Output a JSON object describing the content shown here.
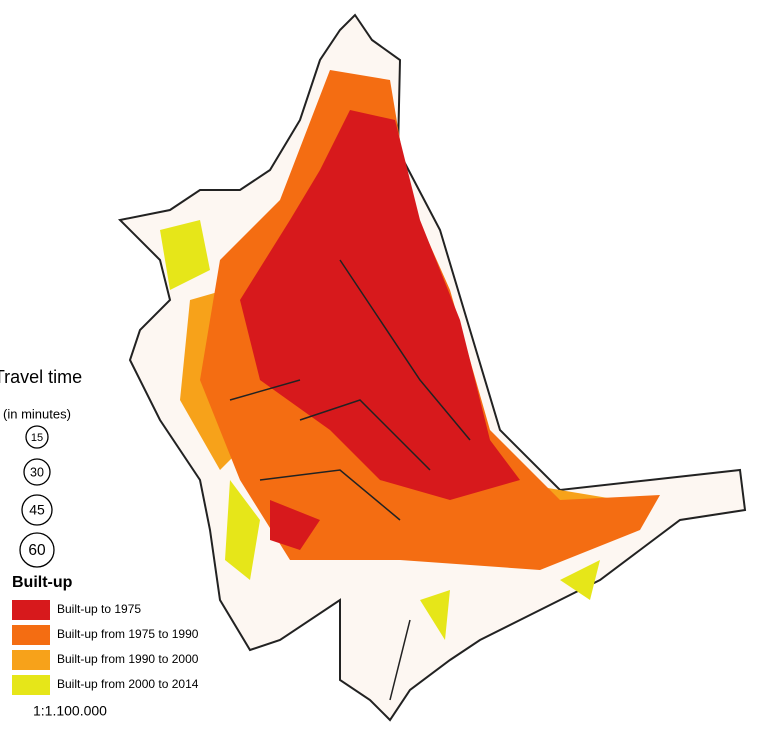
{
  "legend": {
    "travel_time": {
      "title": "Travel time",
      "subtitle": "(in minutes)",
      "circles": [
        15,
        30,
        45,
        60
      ]
    },
    "built_up": {
      "title": "Built-up",
      "entries": [
        {
          "label": "Built-up to 1975",
          "color": "#d7191c"
        },
        {
          "label": "Built-up from 1975 to 1990",
          "color": "#f46d12"
        },
        {
          "label": "Built-up from 1990 to 2000",
          "color": "#f7a21a"
        },
        {
          "label": "Built-up from 2000 to 2014",
          "color": "#e6e619"
        }
      ]
    },
    "scale": "1:1.100.000"
  }
}
